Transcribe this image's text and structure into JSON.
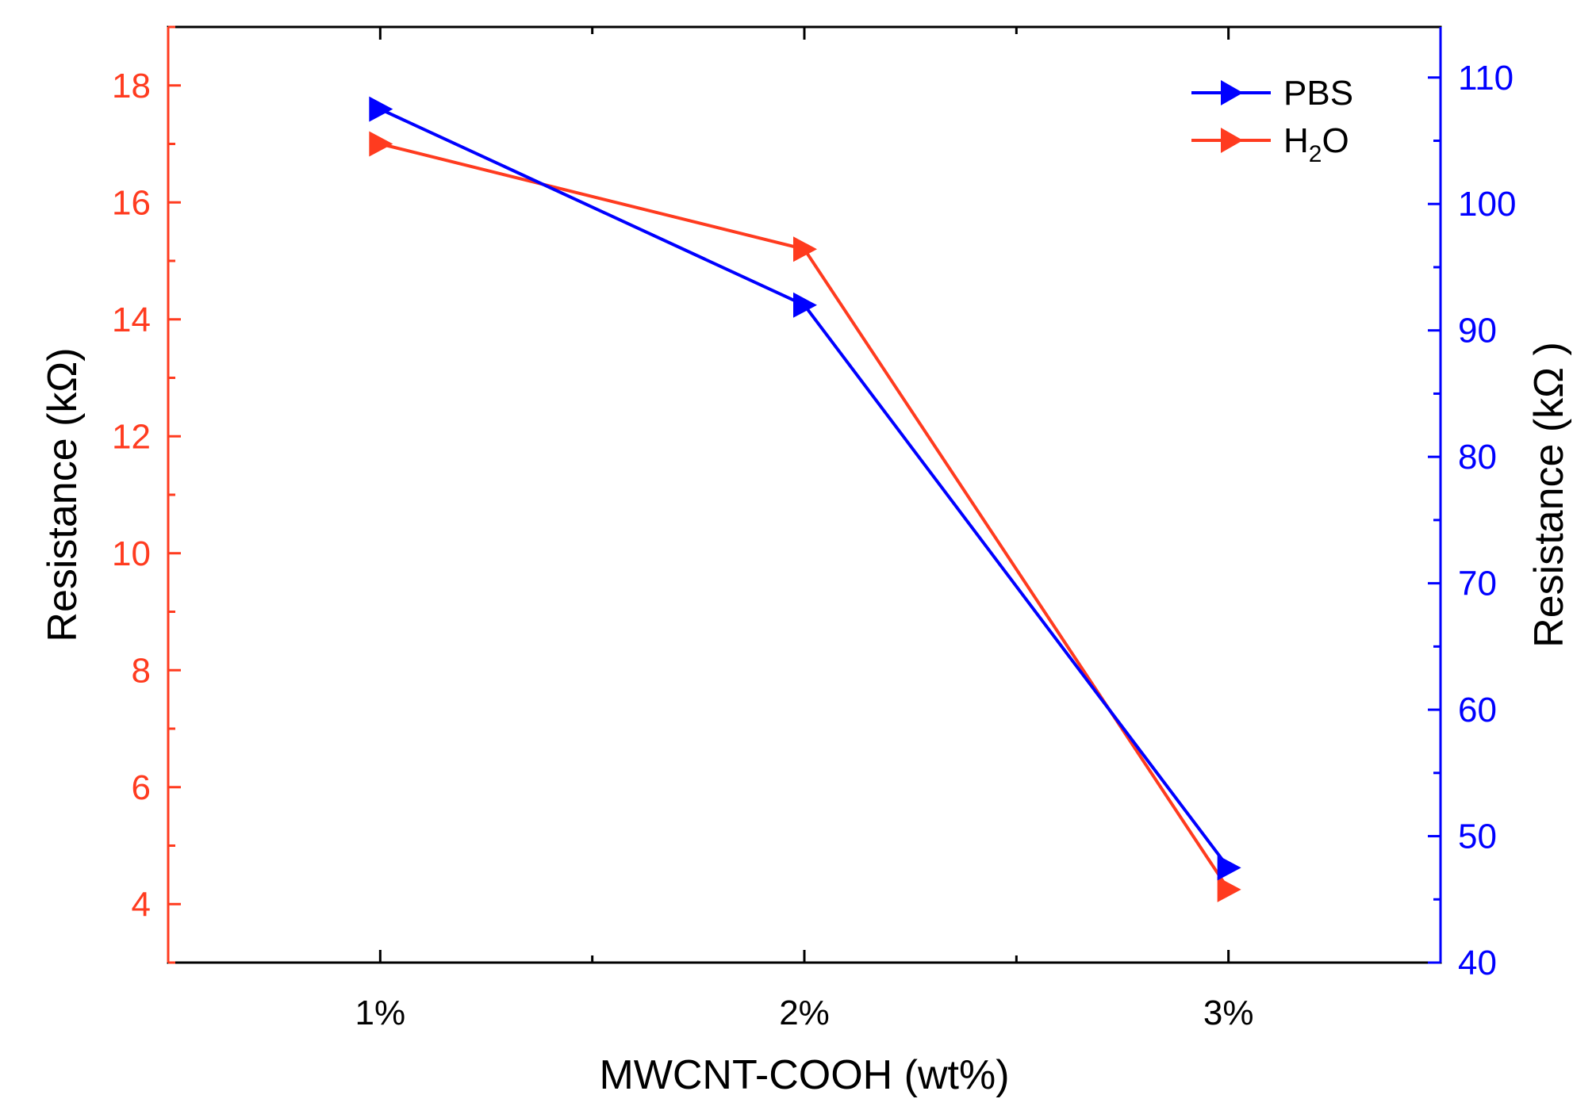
{
  "colors": {
    "left_axis": "#ff3b1f",
    "right_axis": "#0000ff",
    "frame": "#000000"
  },
  "chart_data": {
    "type": "line",
    "categories": [
      "1%",
      "2%",
      "3%"
    ],
    "xlabel": "MWCNT-COOH (wt%)",
    "ylabel_left": "Resistance (kΩ)",
    "ylabel_right": "Resistance (kΩ )",
    "ylim_left": [
      3,
      19
    ],
    "yticks_left": [
      4,
      6,
      8,
      10,
      12,
      14,
      16,
      18
    ],
    "ylim_right": [
      40,
      114
    ],
    "yticks_right": [
      40,
      50,
      60,
      70,
      80,
      90,
      100,
      110
    ],
    "legend_position": "top-right",
    "grid": false,
    "series": [
      {
        "name": "PBS",
        "axis": "right",
        "color": "#0000ff",
        "marker": "triangle-right",
        "values": [
          107.5,
          92,
          47.5
        ]
      },
      {
        "name": "H2O",
        "label_main": "H",
        "label_sub": "2",
        "label_tail": "O",
        "axis": "left",
        "color": "#ff3b1f",
        "marker": "triangle-right",
        "values": [
          17.0,
          15.2,
          4.25
        ]
      }
    ]
  }
}
